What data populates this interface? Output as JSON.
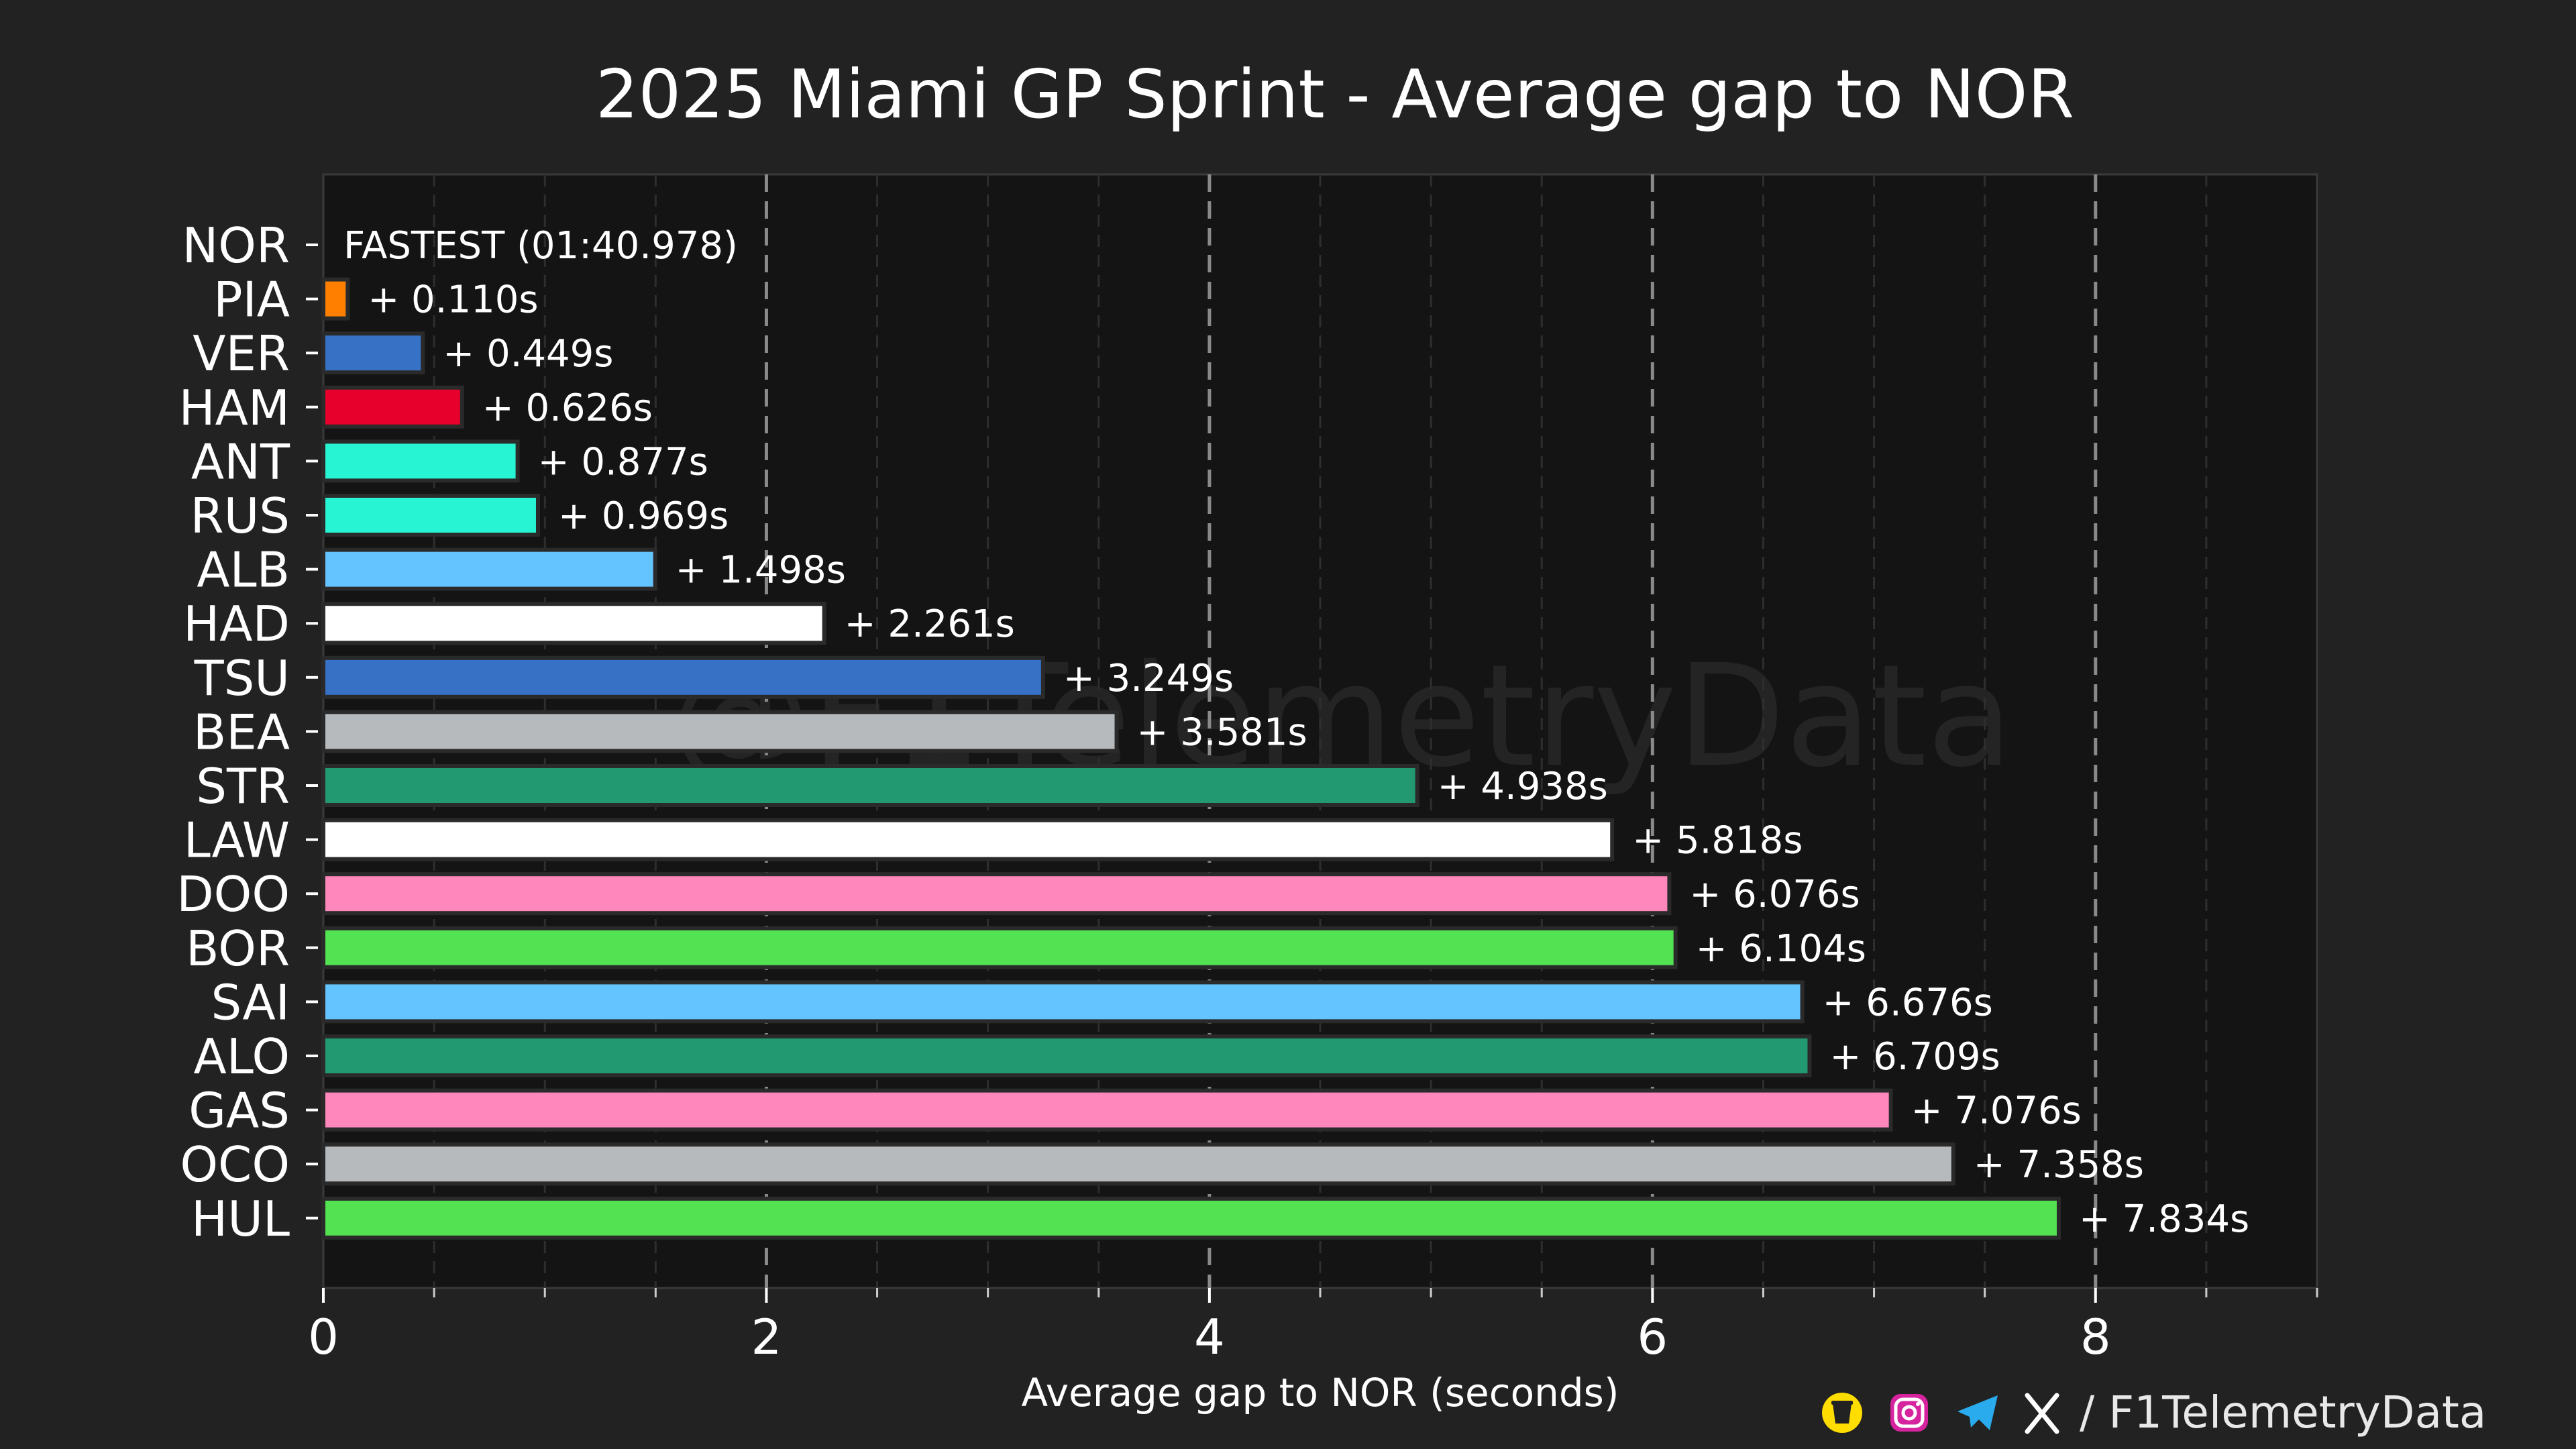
{
  "chart_data": {
    "type": "bar",
    "orientation": "horizontal",
    "title": "2025 Miami GP Sprint - Average gap to NOR",
    "xlabel": "Average gap to NOR (seconds)",
    "ylabel": "",
    "xlim": [
      0,
      9
    ],
    "xticks": [
      0,
      2,
      4,
      6,
      8
    ],
    "xtick_labels": [
      "0",
      "2",
      "4",
      "6",
      "8"
    ],
    "grid": "vertical dashed",
    "watermark": "@F1TelemetryData",
    "categories": [
      "NOR",
      "PIA",
      "VER",
      "HAM",
      "ANT",
      "RUS",
      "ALB",
      "HAD",
      "TSU",
      "BEA",
      "STR",
      "LAW",
      "DOO",
      "BOR",
      "SAI",
      "ALO",
      "GAS",
      "OCO",
      "HUL"
    ],
    "values": [
      0,
      0.11,
      0.449,
      0.626,
      0.877,
      0.969,
      1.498,
      2.261,
      3.249,
      3.581,
      4.938,
      5.818,
      6.076,
      6.104,
      6.676,
      6.709,
      7.076,
      7.358,
      7.834
    ],
    "labels": [
      "FASTEST (01:40.978)",
      "+ 0.110s",
      "+ 0.449s",
      "+ 0.626s",
      "+ 0.877s",
      "+ 0.969s",
      "+ 1.498s",
      "+ 2.261s",
      "+ 3.249s",
      "+ 3.581s",
      "+ 4.938s",
      "+ 5.818s",
      "+ 6.076s",
      "+ 6.104s",
      "+ 6.676s",
      "+ 6.709s",
      "+ 7.076s",
      "+ 7.358s",
      "+ 7.834s"
    ],
    "colors": [
      "#ff8000",
      "#ff8000",
      "#3671c6",
      "#e8002d",
      "#27f4d2",
      "#27f4d2",
      "#64c4ff",
      "#ffffff",
      "#3671c6",
      "#b6babd",
      "#229971",
      "#ffffff",
      "#ff87bc",
      "#52e252",
      "#64c4ff",
      "#229971",
      "#ff87bc",
      "#b6babd",
      "#52e252"
    ]
  },
  "footer": {
    "credit": "/ F1TelemetryData",
    "icons": [
      "buy-me-a-coffee-icon",
      "instagram-icon",
      "telegram-icon",
      "x-icon"
    ]
  }
}
